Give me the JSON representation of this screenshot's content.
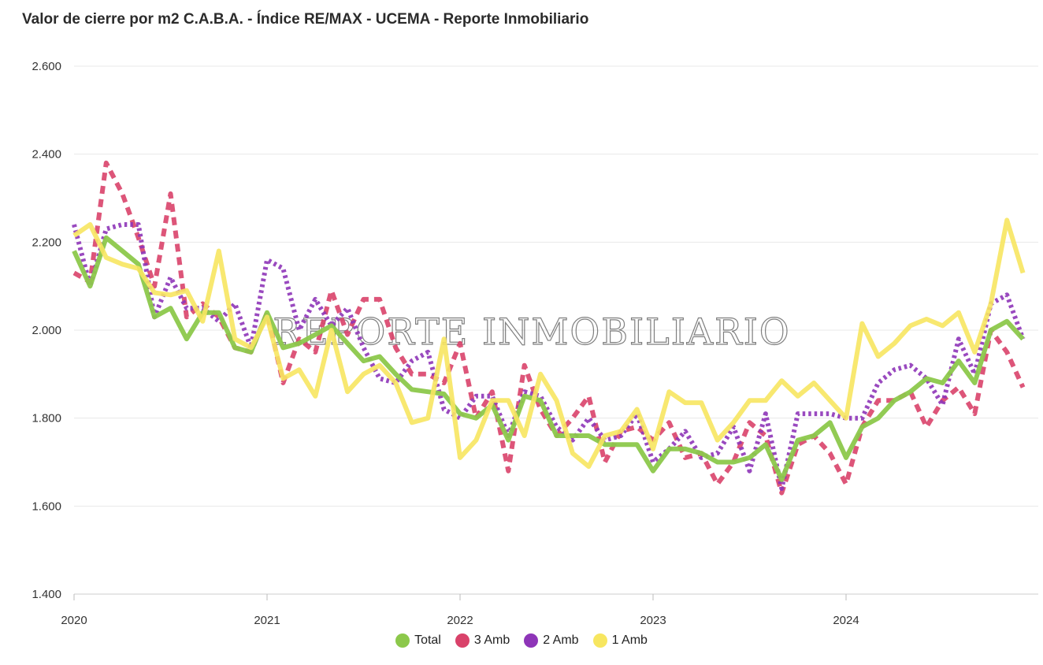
{
  "title": "Valor de cierre por m2 C.A.B.A. - Índice RE/MAX - UCEMA - Reporte Inmobiliario",
  "watermark": "REPORTE INMOBILIARIO",
  "chart_data": {
    "type": "line",
    "title": "Valor de cierre por m2 C.A.B.A. - Índice RE/MAX - UCEMA - Reporte Inmobiliario",
    "xlabel": "",
    "ylabel": "",
    "ylim": [
      1400,
      2600
    ],
    "y_ticks": [
      1400,
      1600,
      1800,
      2000,
      2200,
      2400,
      2600
    ],
    "y_tick_labels": [
      "1.400",
      "1.600",
      "1.800",
      "2.000",
      "2.200",
      "2.400",
      "2.600"
    ],
    "x_ticks": [
      "2020",
      "2021",
      "2022",
      "2023",
      "2024"
    ],
    "x_start": "2020-01",
    "x_end": "2024-12",
    "grid": "horizontal",
    "legend": "bottom-center",
    "series": [
      {
        "name": "Total",
        "color": "#8cc84b",
        "style": "solid",
        "values": [
          2180,
          2100,
          2210,
          2180,
          2150,
          2030,
          2050,
          1980,
          2040,
          2040,
          1960,
          1950,
          2040,
          1960,
          1970,
          1990,
          2010,
          1970,
          1930,
          1940,
          1900,
          1865,
          1860,
          1855,
          1810,
          1800,
          1830,
          1750,
          1850,
          1840,
          1760,
          1760,
          1760,
          1740,
          1740,
          1740,
          1680,
          1730,
          1730,
          1720,
          1700,
          1700,
          1710,
          1740,
          1660,
          1750,
          1760,
          1790,
          1710,
          1780,
          1800,
          1840,
          1860,
          1890,
          1880,
          1930,
          1880,
          2000,
          2020,
          1980
        ]
      },
      {
        "name": "3 Amb",
        "color": "#d9426a",
        "style": "dashed",
        "values": [
          2130,
          2110,
          2380,
          2310,
          2210,
          2100,
          2310,
          2030,
          2060,
          2030,
          1960,
          1950,
          2040,
          1880,
          1980,
          1950,
          2090,
          1990,
          2070,
          2070,
          1960,
          1900,
          1900,
          1880,
          1970,
          1800,
          1860,
          1680,
          1920,
          1820,
          1760,
          1800,
          1850,
          1700,
          1770,
          1780,
          1750,
          1790,
          1710,
          1720,
          1650,
          1700,
          1790,
          1760,
          1630,
          1740,
          1760,
          1720,
          1650,
          1780,
          1840,
          1840,
          1860,
          1780,
          1840,
          1870,
          1810,
          2000,
          1950,
          1870
        ]
      },
      {
        "name": "2 Amb",
        "color": "#8e35b8",
        "style": "dotted",
        "values": [
          2240,
          2100,
          2230,
          2240,
          2240,
          2030,
          2120,
          2050,
          2050,
          2020,
          2060,
          1960,
          2160,
          2140,
          2000,
          2070,
          2010,
          2050,
          1960,
          1890,
          1880,
          1930,
          1950,
          1820,
          1800,
          1850,
          1850,
          1760,
          1860,
          1850,
          1780,
          1750,
          1800,
          1750,
          1760,
          1810,
          1700,
          1730,
          1770,
          1710,
          1720,
          1780,
          1680,
          1810,
          1640,
          1810,
          1810,
          1810,
          1800,
          1800,
          1880,
          1910,
          1920,
          1890,
          1830,
          1980,
          1900,
          2060,
          2080,
          1980
        ]
      },
      {
        "name": "1 Amb",
        "color": "#f7e660",
        "style": "solid",
        "values": [
          2215,
          2240,
          2165,
          2150,
          2140,
          2085,
          2080,
          2090,
          2020,
          2180,
          1980,
          1960,
          2030,
          1890,
          1910,
          1850,
          2000,
          1860,
          1900,
          1920,
          1880,
          1790,
          1800,
          1980,
          1710,
          1750,
          1840,
          1840,
          1760,
          1900,
          1840,
          1720,
          1690,
          1760,
          1770,
          1820,
          1730,
          1860,
          1835,
          1835,
          1750,
          1790,
          1840,
          1840,
          1885,
          1850,
          1880,
          1840,
          1800,
          2015,
          1940,
          1970,
          2010,
          2025,
          2010,
          2040,
          1950,
          2060,
          2250,
          2130
        ]
      }
    ]
  }
}
